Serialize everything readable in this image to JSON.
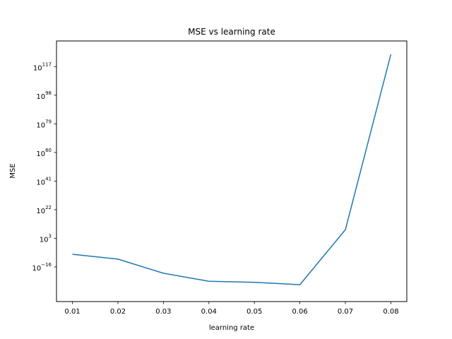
{
  "chart_data": {
    "type": "line",
    "title": "MSE vs learning rate",
    "xlabel": "learning rate",
    "ylabel": "MSE",
    "x": [
      0.01,
      0.02,
      0.03,
      0.04,
      0.05,
      0.06,
      0.07,
      0.08
    ],
    "x_tick_labels": [
      "0.01",
      "0.02",
      "0.03",
      "0.04",
      "0.05",
      "0.06",
      "0.07",
      "0.08"
    ],
    "series": [
      {
        "log10_values": [
          -7.6,
          -10.8,
          -20.2,
          -25.5,
          -26.2,
          -27.8,
          8.7,
          125.2
        ],
        "color": "#1f77b4"
      }
    ],
    "y_scale": "log",
    "y_tick_exponents": [
      -16,
      3,
      22,
      41,
      60,
      79,
      98,
      117
    ],
    "y_tick_base": "10",
    "xlim": [
      0.0065,
      0.0835
    ],
    "ylim_log10": [
      -39,
      134
    ],
    "grid": false
  }
}
